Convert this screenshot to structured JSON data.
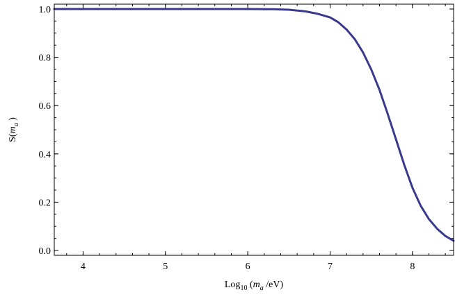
{
  "chart_data": {
    "type": "line",
    "title": "",
    "xlabel_parts": [
      "Log",
      "10",
      " (",
      "m",
      "a",
      " /eV)"
    ],
    "ylabel_parts": [
      "S(",
      "m",
      "a",
      " )"
    ],
    "xlim": [
      3.65,
      8.5
    ],
    "ylim": [
      -0.02,
      1.02
    ],
    "x_major_ticks": [
      4,
      5,
      6,
      7,
      8
    ],
    "x_tick_labels": [
      "4",
      "5",
      "6",
      "7",
      "8"
    ],
    "x_minor_step": 0.2,
    "y_major_ticks": [
      0.0,
      0.2,
      0.4,
      0.6,
      0.8,
      1.0
    ],
    "y_tick_labels": [
      "0.0",
      "0.2",
      "0.4",
      "0.6",
      "0.8",
      "1.0"
    ],
    "y_minor_step": 0.05,
    "grid": false,
    "series": [
      {
        "color": "#3a3a8c",
        "x": [
          3.65,
          4.0,
          4.5,
          5.0,
          5.5,
          6.0,
          6.3,
          6.5,
          6.7,
          6.85,
          7.0,
          7.1,
          7.2,
          7.3,
          7.4,
          7.5,
          7.6,
          7.7,
          7.8,
          7.9,
          8.0,
          8.1,
          8.2,
          8.3,
          8.4,
          8.5
        ],
        "y": [
          1.0,
          1.0,
          1.0,
          1.0,
          1.0,
          1.0,
          0.999,
          0.997,
          0.99,
          0.98,
          0.965,
          0.945,
          0.915,
          0.875,
          0.82,
          0.75,
          0.665,
          0.565,
          0.46,
          0.355,
          0.26,
          0.185,
          0.13,
          0.09,
          0.06,
          0.04
        ]
      }
    ]
  }
}
